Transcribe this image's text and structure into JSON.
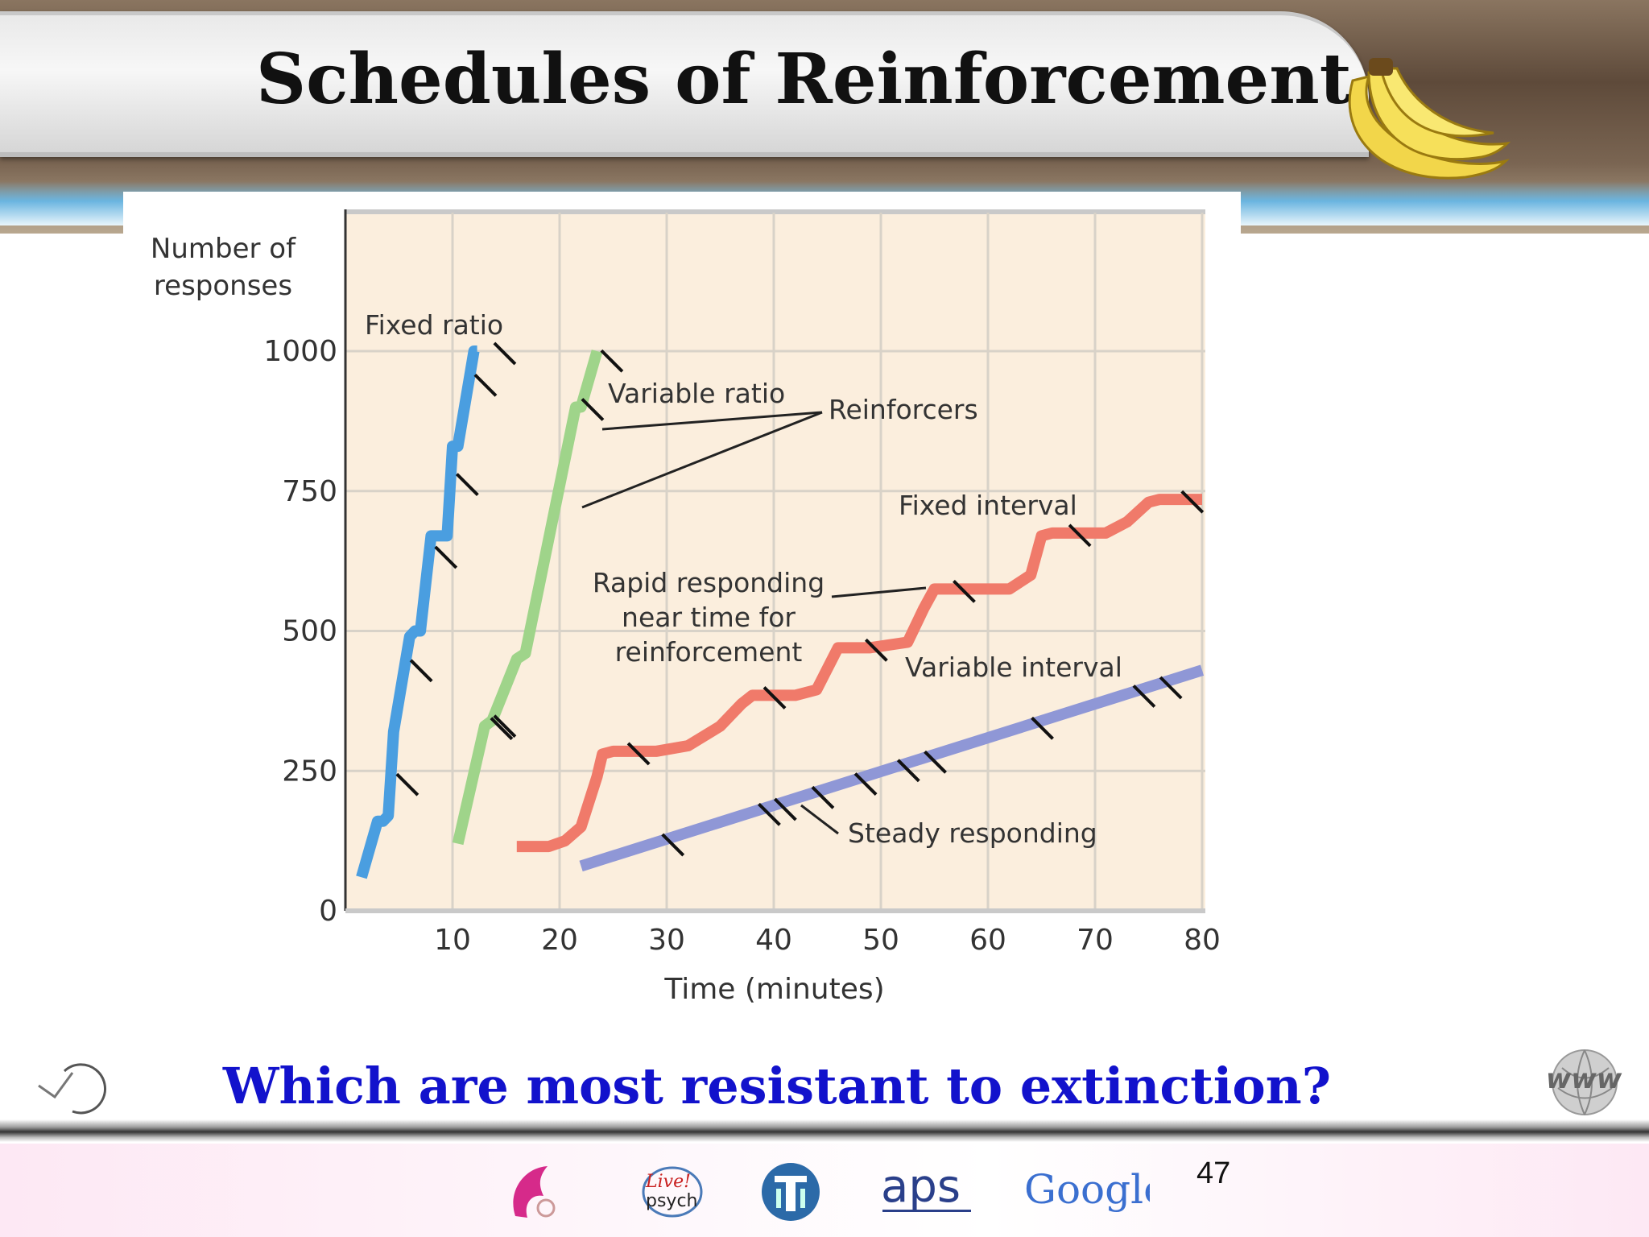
{
  "slide": {
    "title": "Schedules of Reinforcement",
    "question": "Which are most resistant to extinction?",
    "page_number": "47",
    "footer_logos": [
      "dolphin-logo",
      "live-psych-logo",
      "apa-logo",
      "aps-logo",
      "google-logo"
    ],
    "logo_text": {
      "live": "Live!",
      "psych": "psych",
      "aps": "aps",
      "google": "Google",
      "www": "www"
    }
  },
  "chart_data": {
    "type": "line",
    "title": "",
    "xlabel": "Time (minutes)",
    "ylabel": "Number of responses",
    "xlim": [
      0,
      80
    ],
    "ylim": [
      0,
      1000
    ],
    "x_ticks": [
      10,
      20,
      30,
      40,
      50,
      60,
      70,
      80
    ],
    "y_ticks": [
      0,
      250,
      500,
      750,
      1000
    ],
    "grid": true,
    "series": [
      {
        "name": "Fixed ratio",
        "color": "#4a9ee0",
        "x": [
          1.5,
          3,
          3.5,
          4,
          4.5,
          6,
          6.5,
          7,
          8,
          9.5,
          10,
          10.5,
          12,
          12.3
        ],
        "y": [
          60,
          160,
          160,
          170,
          320,
          490,
          500,
          500,
          670,
          670,
          830,
          830,
          1000,
          1000
        ],
        "reinforcers_x": [
          4.2,
          5.5,
          7.8,
          9.8,
          11.5,
          13.3
        ]
      },
      {
        "name": "Variable ratio",
        "color": "#9fd48a",
        "x": [
          10.5,
          13,
          13.7,
          16,
          16.8,
          21.5,
          22,
          23.5
        ],
        "y": [
          120,
          330,
          340,
          450,
          460,
          900,
          900,
          1000
        ],
        "reinforcers_x": [
          13,
          13.3,
          21.5,
          23.3
        ]
      },
      {
        "name": "Fixed interval",
        "color": "#f07a6a",
        "x": [
          16,
          19,
          20.5,
          22,
          23.5,
          24,
          25,
          29,
          32,
          35,
          37,
          38,
          42,
          44,
          46,
          47.5,
          49,
          52.5,
          54,
          55,
          58,
          62,
          64,
          65,
          66,
          69,
          71,
          73,
          75,
          76,
          80
        ],
        "y": [
          115,
          115,
          125,
          150,
          240,
          280,
          285,
          285,
          295,
          330,
          370,
          385,
          385,
          395,
          470,
          470,
          470,
          480,
          540,
          575,
          575,
          575,
          600,
          670,
          675,
          675,
          675,
          695,
          730,
          735,
          735
        ],
        "reinforcers_x": [
          25.8,
          38.5,
          48,
          56.2,
          67,
          77.5
        ]
      },
      {
        "name": "Variable interval",
        "color": "#8f97d6",
        "x": [
          22,
          80
        ],
        "y": [
          80,
          430
        ],
        "reinforcers_x": [
          29,
          38,
          39.5,
          43,
          47,
          51,
          53.5,
          63.5,
          73,
          75.5
        ]
      }
    ],
    "annotations": [
      "Reinforcers",
      "Rapid responding near time for reinforcement",
      "Steady responding"
    ],
    "annotation_lines": {
      "rapid": [
        "Rapid responding",
        "near time for",
        "reinforcement"
      ]
    }
  }
}
